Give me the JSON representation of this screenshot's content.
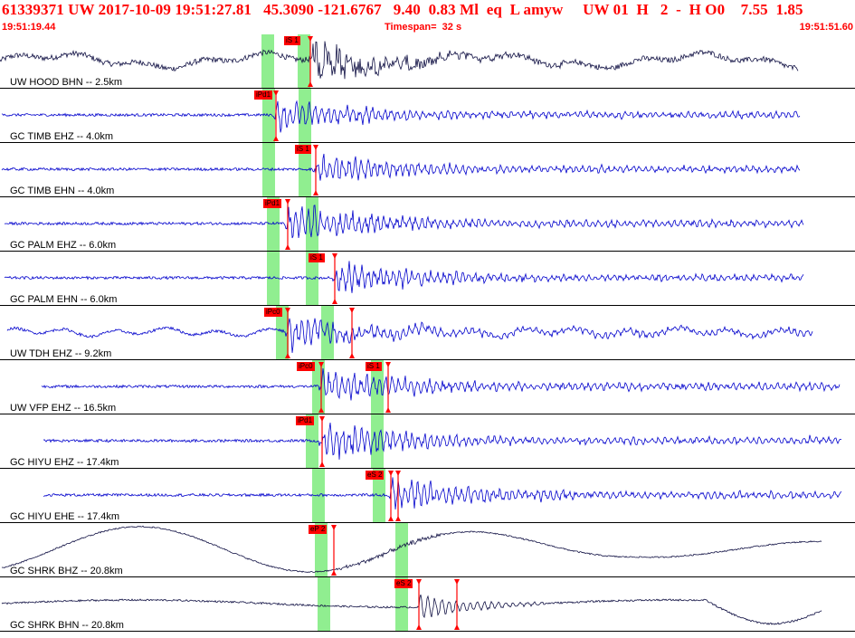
{
  "header": {
    "line1": "61339371 UW 2017-10-09 19:51:27.81   45.3090 -121.6767   9.40  0.83 Ml  eq  L amyw     UW 01  H   2  -  H O0    7.55  1.85",
    "start_time": "19:51:19.44",
    "timespan": "Timespan=  32 s",
    "end_time": "19:51:51.60"
  },
  "colors": {
    "pick": "#ff0000",
    "window": "#90ee90",
    "trace_blue": "#0000cc",
    "trace_black": "#111144"
  },
  "traces": [
    {
      "label": "UW HOOD BHN -- 2.5km",
      "color": "black",
      "style": "noisy-wave",
      "amp": 18,
      "start": 0,
      "end": 882,
      "burst": 345,
      "picks": [
        {
          "text": "iS 1",
          "at": 343,
          "labelLeft": 314
        }
      ],
      "windows": [
        289,
        329
      ]
    },
    {
      "label": "GC TIMB EHZ -- 4.0km",
      "color": "blue",
      "style": "burst",
      "amp": 12,
      "start": 2,
      "end": 884,
      "burst": 305,
      "picks": [
        {
          "text": "iPd1",
          "at": 305,
          "labelLeft": 281
        }
      ],
      "windows": [
        290,
        330
      ]
    },
    {
      "label": "GC TIMB EHN -- 4.0km",
      "color": "blue",
      "style": "burst",
      "amp": 12,
      "start": 2,
      "end": 884,
      "burst": 349,
      "picks": [
        {
          "text": "iS 1",
          "at": 349,
          "labelLeft": 326
        }
      ],
      "windows": [
        290,
        330
      ]
    },
    {
      "label": "GC PALM EHZ -- 6.0km",
      "color": "blue",
      "style": "burst",
      "amp": 14,
      "start": 5,
      "end": 888,
      "burst": 318,
      "picks": [
        {
          "text": "iPd1",
          "at": 318,
          "labelLeft": 291
        }
      ],
      "windows": [
        295,
        338
      ]
    },
    {
      "label": "GC PALM EHN -- 6.0km",
      "color": "blue",
      "style": "burst",
      "amp": 12,
      "start": 5,
      "end": 888,
      "burst": 370,
      "picks": [
        {
          "text": "iS 1",
          "at": 370,
          "labelLeft": 341
        }
      ],
      "windows": [
        295,
        338
      ]
    },
    {
      "label": "UW TDH EHZ -- 9.2km",
      "color": "blue",
      "style": "burst-wave",
      "amp": 12,
      "start": 8,
      "end": 898,
      "burst": 318,
      "picks": [
        {
          "text": "iPc0",
          "at": 318,
          "labelLeft": 292
        },
        {
          "text": "",
          "at": 389,
          "labelLeft": 0
        }
      ],
      "windows": [
        305,
        355
      ]
    },
    {
      "label": "UW VFP EHZ -- 16.5km",
      "color": "blue",
      "style": "burst",
      "amp": 14,
      "start": 46,
      "end": 928,
      "burst": 355,
      "picks": [
        {
          "text": "iPc0",
          "at": 355,
          "labelLeft": 328
        },
        {
          "text": "iS 1",
          "at": 429,
          "labelLeft": 404
        }
      ],
      "windows": [
        345,
        410
      ]
    },
    {
      "label": "GC HIYU EHZ -- 17.4km",
      "color": "blue",
      "style": "burst",
      "amp": 14,
      "start": 48,
      "end": 930,
      "burst": 356,
      "picks": [
        {
          "text": "iPd1",
          "at": 356,
          "labelLeft": 327
        }
      ],
      "windows": [
        338,
        410
      ]
    },
    {
      "label": "GC HIYU EHE -- 17.4km",
      "color": "blue",
      "style": "burst",
      "amp": 14,
      "start": 48,
      "end": 930,
      "burst": 432,
      "picks": [
        {
          "text": "eS 2",
          "at": 432,
          "labelLeft": 404
        },
        {
          "text": "",
          "at": 440,
          "labelLeft": 0
        }
      ],
      "windows": [
        345,
        412
      ]
    },
    {
      "label": "GC SHRK BHZ -- 20.8km",
      "color": "black",
      "style": "long-wave",
      "amp": 25,
      "start": 2,
      "end": 908,
      "burst": 370,
      "picks": [
        {
          "text": "eP 2",
          "at": 369,
          "labelLeft": 341
        }
      ],
      "windows": [
        348,
        437
      ]
    },
    {
      "label": "GC SHRK BHN -- 20.8km",
      "color": "black",
      "style": "long-wave2",
      "amp": 22,
      "start": 2,
      "end": 908,
      "burst": 463,
      "picks": [
        {
          "text": "eS 2",
          "at": 463,
          "labelLeft": 436
        },
        {
          "text": "",
          "at": 505,
          "labelLeft": 0
        }
      ],
      "windows": [
        351,
        437
      ]
    }
  ]
}
